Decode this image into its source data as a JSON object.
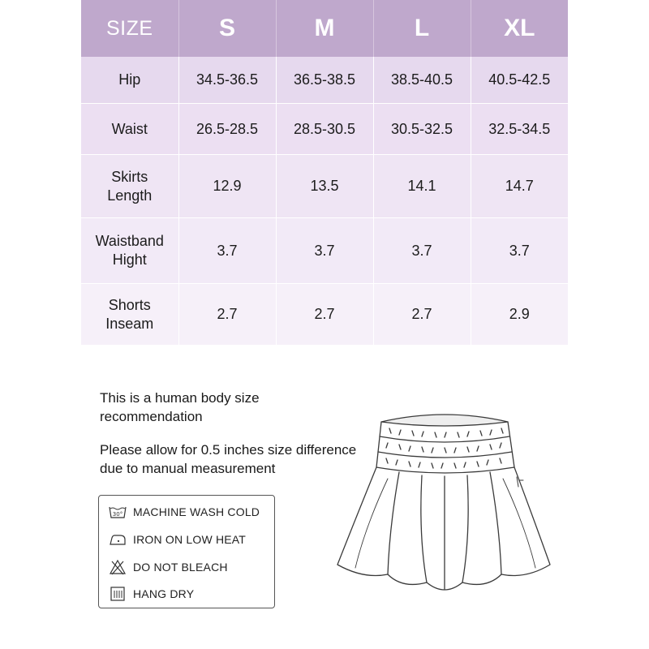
{
  "table": {
    "header": {
      "corner": "SIZE",
      "sizes": [
        "S",
        "M",
        "L",
        "XL"
      ]
    },
    "rows": [
      {
        "label": "Hip",
        "values": [
          "34.5-36.5",
          "36.5-38.5",
          "38.5-40.5",
          "40.5-42.5"
        ]
      },
      {
        "label": "Waist",
        "values": [
          "26.5-28.5",
          "28.5-30.5",
          "30.5-32.5",
          "32.5-34.5"
        ]
      },
      {
        "label": "Skirts\nLength",
        "values": [
          "12.9",
          "13.5",
          "14.1",
          "14.7"
        ]
      },
      {
        "label": "Waistband\nHight",
        "values": [
          "3.7",
          "3.7",
          "3.7",
          "3.7"
        ]
      },
      {
        "label": "Shorts\nInseam",
        "values": [
          "2.7",
          "2.7",
          "2.7",
          "2.9"
        ]
      }
    ]
  },
  "notes": {
    "recommendation": "This is a human body size recommendation",
    "tolerance": "Please allow for 0.5 inches size difference due to manual measurement"
  },
  "care": {
    "items": [
      {
        "icon": "machine-wash-30-icon",
        "label": "MACHINE WASH COLD"
      },
      {
        "icon": "iron-low-heat-icon",
        "label": "IRON ON LOW HEAT"
      },
      {
        "icon": "do-not-bleach-icon",
        "label": "DO NOT BLEACH"
      },
      {
        "icon": "hang-dry-icon",
        "label": "HANG DRY"
      }
    ],
    "wash_temp": "30°"
  },
  "colors": {
    "header_bg": "#bfa8cc",
    "header_text": "#ffffff",
    "row_tint": "#e6d9ee"
  }
}
